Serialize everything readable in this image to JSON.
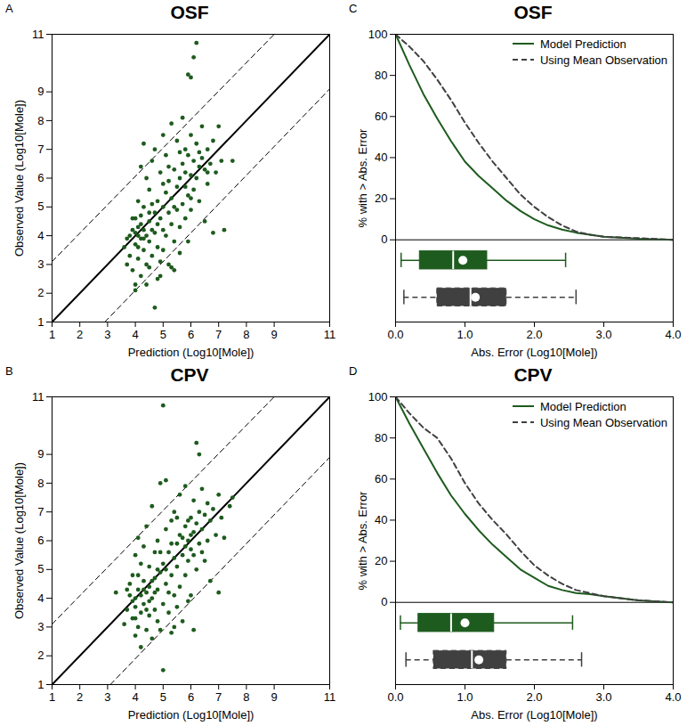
{
  "chart_data": [
    {
      "type": "scatter",
      "panel": "A",
      "title": "OSF",
      "x_label": "Prediction (Log10[Mole])",
      "y_label": "Observed Value (Log10[Mole])",
      "xlim": [
        1,
        11
      ],
      "ylim": [
        1,
        11
      ],
      "xticks": [
        1,
        2,
        3,
        4,
        5,
        6,
        7,
        8,
        9,
        11
      ],
      "yticks": [
        1,
        2,
        3,
        4,
        5,
        6,
        7,
        8,
        9,
        11
      ],
      "color": "#1e5b1e",
      "marker": "circle",
      "lines": [
        {
          "x": [
            1,
            11
          ],
          "y": [
            1,
            11
          ],
          "line_style": "solid"
        },
        {
          "x": [
            1,
            9
          ],
          "y": [
            3.1,
            11
          ],
          "line_style": "dashed"
        },
        {
          "x": [
            2.9,
            11
          ],
          "y": [
            1,
            9.1
          ],
          "line_style": "dashed"
        }
      ],
      "x": [
        3.6,
        3.7,
        3.8,
        3.8,
        3.9,
        3.9,
        4.0,
        4.0,
        4.0,
        4.0,
        4.1,
        4.1,
        4.1,
        4.1,
        4.2,
        4.2,
        4.2,
        4.2,
        4.3,
        4.3,
        4.3,
        4.3,
        4.4,
        4.4,
        4.4,
        4.5,
        4.5,
        4.5,
        4.5,
        4.6,
        4.6,
        4.6,
        4.7,
        4.7,
        4.7,
        4.7,
        4.8,
        4.8,
        4.8,
        4.9,
        4.9,
        4.9,
        5.0,
        5.0,
        5.0,
        5.0,
        5.1,
        5.1,
        5.1,
        5.2,
        5.2,
        5.2,
        5.3,
        5.3,
        5.3,
        5.4,
        5.4,
        5.4,
        5.5,
        5.5,
        5.5,
        5.6,
        5.6,
        5.6,
        5.7,
        5.7,
        5.7,
        5.8,
        5.8,
        5.8,
        5.9,
        5.9,
        5.9,
        5.9,
        6.0,
        6.0,
        6.0,
        6.0,
        6.1,
        6.1,
        6.1,
        6.2,
        6.2,
        6.2,
        6.3,
        6.3,
        6.4,
        6.4,
        6.5,
        6.5,
        6.6,
        6.6,
        6.7,
        6.8,
        6.8,
        6.9,
        7.0,
        7.1,
        7.2,
        7.5,
        3.9,
        4.1,
        4.3,
        4.5,
        4.2,
        4.6,
        4.8,
        5.0,
        5.2,
        5.4,
        5.6,
        5.8,
        6.0,
        6.3,
        6.6,
        4.4,
        4.9,
        5.3,
        3.7,
        4.0
      ],
      "y": [
        3.6,
        3.9,
        4.0,
        3.3,
        4.2,
        2.8,
        4.1,
        3.7,
        2.3,
        2.1,
        4.3,
        4.0,
        3.2,
        5.2,
        4.4,
        3.9,
        2.6,
        6.4,
        4.2,
        3.5,
        5.0,
        7.2,
        4.0,
        3.0,
        6.0,
        4.5,
        3.8,
        2.9,
        5.6,
        4.2,
        6.6,
        3.3,
        4.8,
        4.1,
        1.5,
        7.0,
        5.2,
        3.6,
        2.5,
        4.6,
        6.2,
        3.1,
        5.0,
        4.2,
        7.5,
        3.5,
        5.5,
        4.0,
        6.8,
        4.8,
        3.0,
        5.9,
        5.3,
        4.4,
        7.9,
        6.3,
        3.8,
        2.8,
        5.7,
        4.9,
        7.3,
        6.0,
        4.3,
        3.4,
        6.5,
        5.1,
        8.1,
        6.2,
        4.6,
        7.0,
        6.8,
        5.4,
        9.6,
        3.8,
        6.1,
        7.5,
        9.5,
        4.9,
        6.6,
        10.2,
        5.6,
        10.7,
        7.2,
        6.0,
        6.4,
        5.2,
        7.8,
        6.7,
        6.3,
        4.5,
        7.0,
        5.8,
        6.5,
        7.3,
        4.1,
        6.2,
        7.8,
        6.6,
        4.2,
        6.6,
        4.6,
        3.6,
        3.9,
        4.8,
        4.7,
        5.1,
        4.4,
        5.8,
        6.4,
        5.0,
        6.9,
        5.7,
        5.3,
        6.9,
        6.2,
        2.3,
        2.6,
        2.9,
        3.0,
        4.6
      ]
    },
    {
      "type": "line",
      "panel": "C",
      "title": "OSF",
      "x_label": "Abs. Error (Log10[Mole])",
      "y_label": "% with > Abs. Error",
      "xlim": [
        0,
        4
      ],
      "ylim": [
        -40,
        100
      ],
      "xticks": [
        0,
        1,
        2,
        3,
        4
      ],
      "yticks": [
        0,
        20,
        40,
        60,
        80,
        100
      ],
      "legend": "top-right",
      "x": [
        0,
        0.2,
        0.4,
        0.6,
        0.8,
        1.0,
        1.2,
        1.4,
        1.6,
        1.8,
        2.0,
        2.2,
        2.4,
        2.6,
        2.8,
        3.0,
        3.5,
        4.0
      ],
      "series": [
        {
          "name": "Model Prediction",
          "color": "#1e5b1e",
          "line_style": "solid",
          "values": [
            100,
            85,
            71,
            59,
            48,
            38,
            31,
            25,
            19,
            14,
            10,
            7,
            5,
            3.5,
            2.5,
            1.5,
            0.5,
            0
          ],
          "boxplot": {
            "min": 0.08,
            "q1": 0.35,
            "median": 0.83,
            "mean": 0.97,
            "q3": 1.32,
            "max": 2.45
          }
        },
        {
          "name": "Using Mean Observation",
          "color": "#404040",
          "line_style": "dashed",
          "values": [
            100,
            94,
            87,
            78,
            68,
            57,
            47,
            38,
            30,
            22,
            16,
            11,
            7,
            4,
            2.5,
            1.5,
            0.8,
            0
          ],
          "boxplot": {
            "min": 0.12,
            "q1": 0.6,
            "median": 1.08,
            "mean": 1.15,
            "q3": 1.6,
            "max": 2.6
          }
        }
      ]
    },
    {
      "type": "scatter",
      "panel": "B",
      "title": "CPV",
      "x_label": "Prediction (Log10[Mole])",
      "y_label": "Observed Value (Log10[Mole])",
      "xlim": [
        1,
        11
      ],
      "ylim": [
        1,
        11
      ],
      "xticks": [
        1,
        2,
        3,
        4,
        5,
        6,
        7,
        8,
        9,
        11
      ],
      "yticks": [
        1,
        2,
        3,
        4,
        5,
        6,
        7,
        8,
        9,
        11
      ],
      "color": "#1e5b1e",
      "marker": "circle",
      "lines": [
        {
          "x": [
            1,
            11
          ],
          "y": [
            1,
            11
          ],
          "line_style": "solid"
        },
        {
          "x": [
            1,
            9
          ],
          "y": [
            3.1,
            11
          ],
          "line_style": "dashed"
        },
        {
          "x": [
            3.1,
            11
          ],
          "y": [
            1,
            8.9
          ],
          "line_style": "dashed"
        }
      ],
      "x": [
        3.3,
        3.6,
        3.7,
        3.8,
        3.8,
        3.9,
        3.9,
        4.0,
        4.0,
        4.0,
        4.0,
        4.1,
        4.1,
        4.1,
        4.2,
        4.2,
        4.2,
        4.3,
        4.3,
        4.3,
        4.4,
        4.4,
        4.4,
        4.5,
        4.5,
        4.5,
        4.6,
        4.6,
        4.6,
        4.7,
        4.7,
        4.7,
        4.8,
        4.8,
        4.8,
        4.9,
        4.9,
        4.9,
        5.0,
        5.0,
        5.0,
        5.0,
        5.1,
        5.1,
        5.1,
        5.2,
        5.2,
        5.3,
        5.3,
        5.3,
        5.4,
        5.4,
        5.4,
        5.5,
        5.5,
        5.5,
        5.6,
        5.6,
        5.6,
        5.7,
        5.7,
        5.8,
        5.8,
        5.8,
        5.9,
        5.9,
        5.9,
        6.0,
        6.0,
        6.0,
        6.1,
        6.1,
        6.1,
        6.2,
        6.2,
        6.2,
        6.3,
        6.3,
        6.3,
        6.4,
        6.4,
        6.5,
        6.5,
        6.6,
        6.6,
        6.7,
        6.7,
        6.8,
        6.9,
        7.0,
        7.0,
        7.1,
        7.2,
        7.5,
        7.4,
        3.9,
        4.1,
        4.3,
        4.5,
        4.7,
        4.9,
        5.1,
        5.3,
        5.5,
        5.7,
        5.9,
        6.1,
        6.4,
        4.2,
        4.4,
        4.6,
        4.8,
        5.2,
        5.4,
        5.8,
        6.0,
        3.7,
        4.0
      ],
      "y": [
        4.2,
        3.1,
        3.6,
        4.1,
        4.5,
        3.3,
        4.8,
        4.0,
        3.7,
        2.7,
        5.5,
        4.3,
        3.0,
        6.1,
        4.1,
        3.5,
        2.3,
        4.6,
        3.8,
        5.8,
        4.2,
        2.9,
        6.5,
        4.4,
        3.4,
        5.1,
        4.0,
        2.6,
        7.2,
        4.7,
        3.6,
        5.6,
        4.3,
        3.2,
        6.0,
        4.9,
        2.9,
        8.0,
        5.2,
        3.8,
        10.7,
        1.5,
        4.5,
        6.4,
        8.1,
        5.6,
        3.5,
        4.8,
        6.7,
        2.8,
        5.4,
        4.1,
        7.0,
        5.9,
        3.7,
        5.1,
        6.2,
        4.4,
        7.6,
        5.5,
        3.2,
        6.5,
        4.8,
        7.9,
        6.0,
        5.3,
        3.9,
        6.8,
        5.7,
        4.1,
        6.3,
        7.4,
        2.9,
        9.4,
        6.6,
        5.0,
        9.0,
        7.0,
        5.9,
        6.4,
        7.8,
        6.9,
        5.3,
        6.0,
        7.3,
        6.7,
        4.6,
        7.1,
        6.2,
        7.6,
        4.2,
        6.8,
        6.1,
        7.5,
        7.2,
        3.9,
        4.8,
        4.3,
        3.9,
        4.2,
        5.6,
        5.0,
        5.9,
        6.8,
        6.1,
        6.7,
        5.5,
        5.6,
        5.2,
        3.6,
        4.6,
        5.0,
        4.2,
        3.0,
        5.8,
        6.2,
        4.3,
        3.3
      ]
    },
    {
      "type": "line",
      "panel": "D",
      "title": "CPV",
      "x_label": "Abs. Error (Log10[Mole])",
      "y_label": "% with > Abs. Error",
      "xlim": [
        0,
        4
      ],
      "ylim": [
        -40,
        100
      ],
      "xticks": [
        0,
        1,
        2,
        3,
        4
      ],
      "yticks": [
        0,
        20,
        40,
        60,
        80,
        100
      ],
      "legend": "top-right",
      "x": [
        0,
        0.2,
        0.4,
        0.6,
        0.8,
        1.0,
        1.2,
        1.4,
        1.6,
        1.8,
        2.0,
        2.2,
        2.4,
        2.6,
        2.8,
        3.0,
        3.5,
        4.0
      ],
      "series": [
        {
          "name": "Model Prediction",
          "color": "#1e5b1e",
          "line_style": "solid",
          "values": [
            100,
            87,
            75,
            63,
            52,
            43,
            35,
            28,
            22,
            16,
            12,
            8,
            6,
            4.5,
            4,
            3,
            1,
            0
          ],
          "boxplot": {
            "min": 0.07,
            "q1": 0.33,
            "median": 0.8,
            "mean": 1.0,
            "q3": 1.42,
            "max": 2.55
          }
        },
        {
          "name": "Using Mean Observation",
          "color": "#404040",
          "line_style": "dashed",
          "values": [
            100,
            92,
            85,
            80,
            70,
            58,
            48,
            40,
            33,
            25,
            18,
            13,
            9,
            6,
            4.5,
            3,
            1,
            0
          ],
          "boxplot": {
            "min": 0.15,
            "q1": 0.55,
            "median": 1.1,
            "mean": 1.2,
            "q3": 1.6,
            "max": 2.68
          }
        }
      ]
    }
  ]
}
